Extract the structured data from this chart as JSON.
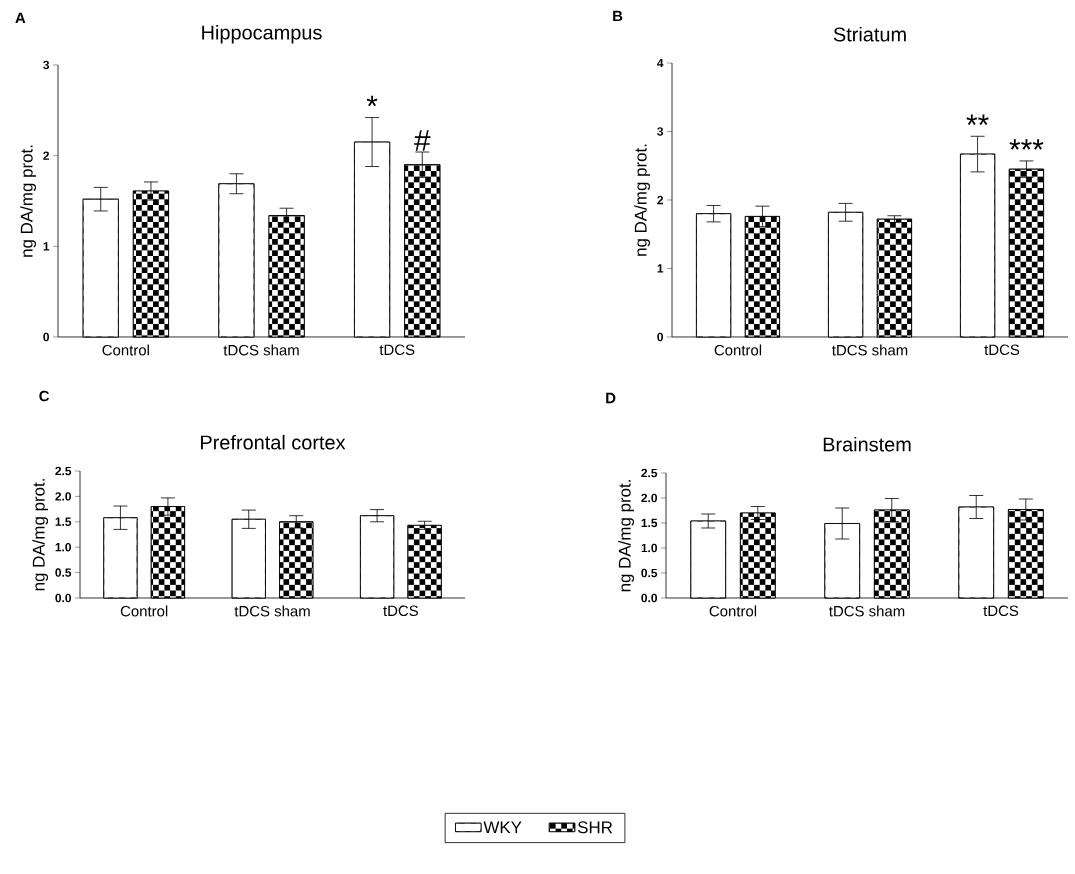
{
  "chart_data": [
    {
      "type": "bar",
      "title": "Hippocampus",
      "ylabel": "ng DA/mg prot.",
      "categories": [
        "Control",
        "tDCS sham",
        "tDCS"
      ],
      "ylim": [
        0,
        3
      ],
      "yticks": [
        0,
        1,
        2,
        3
      ],
      "series": [
        {
          "color": "#ffffff",
          "values": [
            1.52,
            1.69,
            2.15
          ],
          "errors": [
            0.13,
            0.11,
            0.27
          ]
        },
        {
          "color": "#000000",
          "values": [
            1.61,
            1.34,
            1.9
          ],
          "errors": [
            0.1,
            0.08,
            0.14
          ]
        }
      ],
      "annotations": [
        "A",
        "*",
        "#"
      ]
    },
    {
      "type": "bar",
      "title": "Striatum",
      "ylabel": "ng DA/mg prot.",
      "categories": [
        "Control",
        "tDCS sham",
        "tDCS"
      ],
      "ylim": [
        0,
        4
      ],
      "yticks": [
        0,
        1,
        2,
        3,
        4
      ],
      "series": [
        {
          "color": "#ffffff",
          "values": [
            1.8,
            1.82,
            2.67
          ],
          "errors": [
            0.12,
            0.13,
            0.26
          ]
        },
        {
          "color": "#000000",
          "values": [
            1.76,
            1.72,
            2.45
          ],
          "errors": [
            0.15,
            0.05,
            0.12
          ]
        }
      ],
      "annotations": [
        "B",
        "**",
        "***"
      ]
    },
    {
      "type": "bar",
      "title": "Prefrontal cortex",
      "ylabel": "ng DA/mg prot.",
      "categories": [
        "Control",
        "tDCS sham",
        "tDCS"
      ],
      "ylim": [
        0,
        2.5
      ],
      "yticks": [
        {
          "value": 0,
          "label": "0.0"
        },
        {
          "value": 0.5,
          "label": "0.5"
        },
        {
          "value": 1,
          "label": "1.0"
        },
        {
          "value": 1.5,
          "label": "1.5"
        },
        {
          "value": 2,
          "label": "2.0"
        },
        {
          "value": 2.5,
          "label": "2.5"
        }
      ],
      "series": [
        {
          "color": "#ffffff",
          "values": [
            1.58,
            1.55,
            1.62
          ],
          "errors": [
            0.23,
            0.18,
            0.12
          ]
        },
        {
          "color": "#000000",
          "values": [
            1.8,
            1.5,
            1.43
          ],
          "errors": [
            0.17,
            0.12,
            0.08
          ]
        }
      ],
      "annotations": [
        "C"
      ]
    },
    {
      "type": "bar",
      "title": "Brainstem",
      "ylabel": "ng DA/mg prot.",
      "categories": [
        "Control",
        "tDCS sham",
        "tDCS"
      ],
      "ylim": [
        0,
        2.5
      ],
      "yticks": [
        {
          "value": 0,
          "label": "0.0"
        },
        {
          "value": 0.5,
          "label": "0.5"
        },
        {
          "value": 1,
          "label": "1.0"
        },
        {
          "value": 1.5,
          "label": "1.5"
        },
        {
          "value": 2,
          "label": "2.0"
        },
        {
          "value": 2.5,
          "label": "2.5"
        }
      ],
      "series": [
        {
          "name": "WKY",
          "color": "#ffffff",
          "values": [
            1.54,
            1.49,
            1.82
          ],
          "errors": [
            0.14,
            0.31,
            0.23
          ]
        },
        {
          "name": "SHR",
          "color": "#000000",
          "values": [
            1.7,
            1.76,
            1.77
          ],
          "errors": [
            0.13,
            0.23,
            0.21
          ]
        }
      ],
      "annotations": [
        "D"
      ],
      "legend": "bottom"
    }
  ]
}
